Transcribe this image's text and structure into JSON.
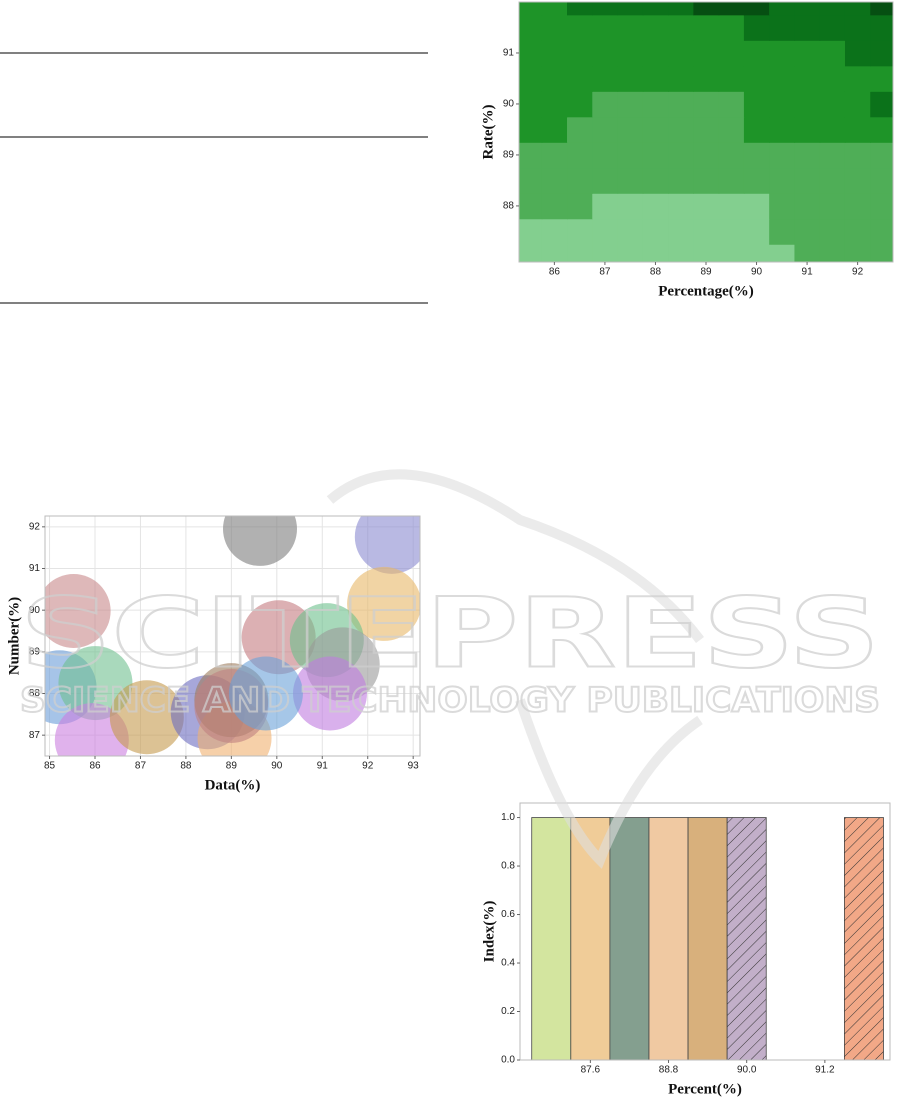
{
  "watermark": {
    "title": "SCITEPRESS",
    "subtitle": "SCIENCE AND TECHNOLOGY PUBLICATIONS"
  },
  "chart_data": [
    {
      "type": "contour",
      "xlabel": "Percentage(%)",
      "ylabel": "Rate(%)",
      "xlim": [
        85.3,
        92.7
      ],
      "ylim": [
        86.9,
        92.0
      ],
      "xticks": [
        86,
        87,
        88,
        89,
        90,
        91,
        92
      ],
      "yticks": [
        88,
        89,
        90,
        91
      ],
      "x": [
        85.5,
        86,
        86.5,
        87,
        87.5,
        88,
        88.5,
        89,
        89.5,
        90,
        90.5,
        91,
        91.5,
        92,
        92.5
      ],
      "y": [
        87,
        87.5,
        88,
        88.5,
        89,
        89.5,
        90,
        90.5,
        91,
        91.5,
        92
      ],
      "z": [
        [
          0,
          0,
          0,
          0,
          0,
          0,
          0,
          0,
          0,
          0,
          0,
          1,
          1,
          1,
          1
        ],
        [
          0,
          0,
          0,
          0,
          0,
          0,
          0,
          0,
          0,
          0,
          1,
          1,
          1,
          1,
          1
        ],
        [
          1,
          1,
          1,
          0,
          0,
          0,
          0,
          0,
          0,
          0,
          1,
          1,
          1,
          1,
          1
        ],
        [
          1,
          1,
          1,
          1,
          1,
          1,
          1,
          1,
          1,
          1,
          1,
          1,
          1,
          1,
          1
        ],
        [
          1,
          1,
          1,
          1,
          1,
          1,
          1,
          1,
          1,
          1,
          1,
          1,
          1,
          1,
          1
        ],
        [
          2,
          2,
          1,
          1,
          1,
          1,
          1,
          1,
          1,
          2,
          2,
          2,
          2,
          2,
          2
        ],
        [
          2,
          2,
          2,
          1,
          1,
          1,
          1,
          1,
          1,
          2,
          2,
          2,
          2,
          2,
          3
        ],
        [
          2,
          2,
          2,
          2,
          2,
          2,
          2,
          2,
          2,
          2,
          2,
          2,
          2,
          2,
          2
        ],
        [
          2,
          2,
          2,
          2,
          2,
          2,
          2,
          2,
          2,
          2,
          2,
          2,
          2,
          3,
          3
        ],
        [
          2,
          2,
          2,
          2,
          2,
          2,
          2,
          2,
          2,
          3,
          3,
          3,
          3,
          3,
          3
        ],
        [
          2,
          2,
          3,
          3,
          3,
          3,
          3,
          4,
          4,
          4,
          3,
          3,
          3,
          3,
          4
        ]
      ],
      "colors": [
        "#83cf8f",
        "#4fae57",
        "#1e9428",
        "#0b721a",
        "#064f12"
      ]
    },
    {
      "type": "scatter",
      "xlabel": "Data(%)",
      "ylabel": "Number(%)",
      "xlim": [
        84.9,
        93.15
      ],
      "ylim": [
        86.5,
        92.26
      ],
      "xticks": [
        85,
        86,
        87,
        88,
        89,
        90,
        91,
        92,
        93
      ],
      "yticks": [
        87,
        88,
        89,
        90,
        91,
        92
      ],
      "grid": true,
      "x": [
        89.63,
        92.53,
        85.53,
        92.36,
        90.04,
        91.1,
        91.45,
        85.22,
        86.01,
        91.17,
        85.93,
        87.14,
        88.48,
        89.07,
        89.0,
        89.0,
        89.76
      ],
      "y": [
        91.95,
        91.76,
        89.98,
        90.15,
        89.35,
        89.28,
        88.7,
        88.15,
        88.25,
        88.0,
        86.88,
        87.43,
        87.55,
        86.93,
        87.84,
        87.7,
        88.0
      ],
      "colors": [
        "#7d7d7d",
        "#8a8ad0",
        "#c8888a",
        "#e8b868",
        "#c47c80",
        "#6cbf8c",
        "#9a9a9a",
        "#6a9cd8",
        "#70c090",
        "#c07ce0",
        "#cc7fe0",
        "#c49a4c",
        "#6c6cc0",
        "#f0b070",
        "#9c7c5c",
        "#c08080",
        "#6aa2d8"
      ]
    },
    {
      "type": "histogram",
      "xlabel": "Percent(%)",
      "ylabel": "Index(%)",
      "xlim": [
        86.52,
        92.2
      ],
      "ylim": [
        0,
        1.06
      ],
      "xticks": [
        87.6,
        88.8,
        {
          "value": 90,
          "label": "90.0"
        },
        91.2
      ],
      "yticks": [
        {
          "value": 0,
          "label": "0.0"
        },
        0.2,
        0.4,
        0.6,
        0.8,
        {
          "value": 1,
          "label": "1.0"
        }
      ],
      "bins": [
        86.7,
        87.3,
        87.9,
        88.5,
        89.1,
        89.7,
        90.3,
        90.9,
        91.5,
        92.1
      ],
      "values": [
        1,
        1,
        1,
        1,
        1,
        1,
        0,
        0,
        1
      ],
      "colors": [
        "#d3e59f",
        "#f0cc98",
        "#849f8f",
        "#f0c9a2",
        "#d8b07c",
        "#c2afc9",
        "#cccccc",
        "#cccccc",
        "#f2a887"
      ],
      "hatch": [
        false,
        false,
        false,
        false,
        false,
        true,
        false,
        false,
        true
      ]
    }
  ]
}
